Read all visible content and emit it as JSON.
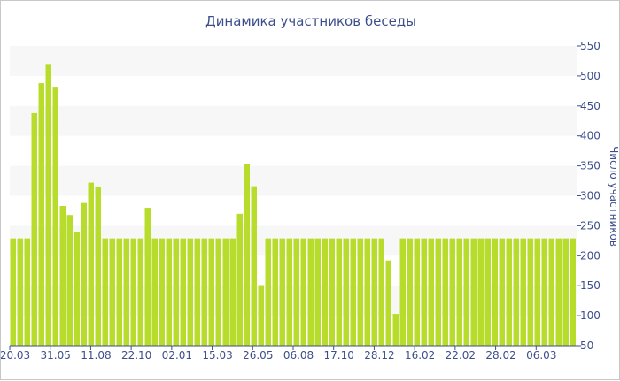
{
  "chart_data": {
    "type": "bar",
    "title": "Динамика участников беседы",
    "ylabel": "Число участников",
    "xlabel": "",
    "ylim": [
      50,
      550
    ],
    "yticks": [
      50,
      100,
      150,
      200,
      250,
      300,
      350,
      400,
      450,
      500,
      550
    ],
    "xtick_labels": [
      "20.03",
      "31.05",
      "11.08",
      "22.10",
      "02.01",
      "15.03",
      "26.05",
      "06.08",
      "17.10",
      "28.12",
      "16.02",
      "22.02",
      "28.02",
      "06.03"
    ],
    "grid": true,
    "bar_color": "#b8dc2c",
    "values": [
      229,
      229,
      229,
      438,
      488,
      520,
      482,
      283,
      268,
      239,
      288,
      322,
      315,
      229,
      229,
      229,
      229,
      229,
      229,
      280,
      229,
      229,
      229,
      229,
      229,
      229,
      229,
      229,
      229,
      229,
      229,
      229,
      270,
      353,
      316,
      151,
      229,
      229,
      229,
      229,
      229,
      229,
      229,
      229,
      229,
      229,
      229,
      229,
      229,
      229,
      229,
      229,
      229,
      192,
      103,
      229,
      229,
      229,
      229,
      229,
      229,
      229,
      229,
      229,
      229,
      229,
      229,
      229,
      229,
      229,
      229,
      229,
      229,
      229,
      229,
      229,
      229,
      229,
      229,
      229
    ]
  }
}
